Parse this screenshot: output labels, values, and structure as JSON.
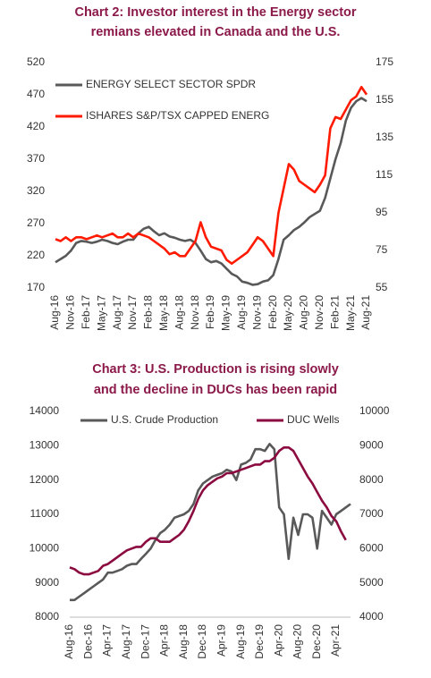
{
  "chart_data": [
    {
      "type": "line",
      "title": [
        "Chart 2: Investor interest in the Energy sector",
        "remians elevated in Canada and the U.S."
      ],
      "categories": [
        "Aug-16",
        null,
        null,
        "Nov-16",
        null,
        null,
        "Feb-17",
        null,
        null,
        "May-17",
        null,
        null,
        "Aug-17",
        null,
        null,
        "Nov-17",
        null,
        null,
        "Feb-18",
        null,
        null,
        "May-18",
        null,
        null,
        "Aug-18",
        null,
        null,
        "Nov-18",
        null,
        null,
        "Feb-19",
        null,
        null,
        "May-19",
        null,
        null,
        "Aug-19",
        null,
        null,
        "Nov-19",
        null,
        null,
        "Feb-20",
        null,
        null,
        "May-20",
        null,
        null,
        "Aug-20",
        null,
        null,
        "Nov-20",
        null,
        null,
        "Feb-21",
        null,
        null,
        "May-21",
        null,
        null,
        "Aug-21"
      ],
      "series": [
        {
          "name": "ENERGY SELECT SECTOR SPDR",
          "color": "#595959",
          "axis": "y",
          "values": [
            210,
            215,
            220,
            228,
            240,
            243,
            242,
            240,
            242,
            245,
            243,
            240,
            238,
            242,
            245,
            245,
            255,
            262,
            265,
            258,
            252,
            255,
            250,
            248,
            245,
            243,
            245,
            240,
            228,
            215,
            210,
            212,
            208,
            200,
            192,
            188,
            180,
            178,
            175,
            176,
            180,
            182,
            190,
            215,
            245,
            252,
            260,
            265,
            272,
            280,
            285,
            290,
            310,
            340,
            370,
            395,
            430,
            450,
            460,
            465,
            460
          ]
        },
        {
          "name": "ISHARES S&P/TSX CAPPED ENERG",
          "color": "#ff1a00",
          "axis": "y2",
          "values": [
            81,
            80,
            82,
            80,
            82,
            82,
            81,
            82,
            83,
            82,
            83,
            84,
            82,
            82,
            84,
            82,
            84,
            83,
            82,
            80,
            78,
            76,
            73,
            74,
            72,
            72,
            76,
            80,
            90,
            82,
            77,
            76,
            75,
            70,
            68,
            70,
            72,
            74,
            78,
            82,
            80,
            76,
            72,
            95,
            108,
            121,
            118,
            112,
            110,
            108,
            106,
            110,
            115,
            140,
            146,
            145,
            150,
            155,
            157,
            162,
            158
          ]
        }
      ],
      "ylim": [
        170,
        520
      ],
      "yticks": [
        170,
        220,
        270,
        320,
        370,
        420,
        470,
        520
      ],
      "y2lim": [
        55,
        175
      ],
      "y2ticks": [
        55,
        75,
        95,
        115,
        135,
        155,
        175
      ]
    },
    {
      "type": "line",
      "title": [
        "Chart 3: U.S. Production is rising slowly",
        "and the decline in DUCs has been rapid"
      ],
      "categories": [
        "Aug-16",
        null,
        null,
        null,
        "Dec-16",
        null,
        null,
        null,
        "Apr-17",
        null,
        null,
        null,
        "Aug-17",
        null,
        null,
        null,
        "Dec-17",
        null,
        null,
        null,
        "Apr-18",
        null,
        null,
        null,
        "Aug-18",
        null,
        null,
        null,
        "Dec-18",
        null,
        null,
        null,
        "Apr-19",
        null,
        null,
        null,
        "Aug-19",
        null,
        null,
        null,
        "Dec-19",
        null,
        null,
        null,
        "Apr-20",
        null,
        null,
        null,
        "Aug-20",
        null,
        null,
        null,
        "Dec-20",
        null,
        null,
        null,
        "Apr-21",
        null,
        null,
        null
      ],
      "series": [
        {
          "name": "U.S. Crude Production",
          "color": "#595959",
          "axis": "y",
          "values": [
            8500,
            8500,
            8600,
            8700,
            8800,
            8900,
            9000,
            9100,
            9300,
            9300,
            9350,
            9400,
            9500,
            9550,
            9550,
            9700,
            9850,
            10000,
            10250,
            10450,
            10550,
            10700,
            10900,
            10950,
            11000,
            11100,
            11300,
            11700,
            11900,
            12000,
            12100,
            12150,
            12200,
            12300,
            12250,
            12000,
            12450,
            12500,
            12600,
            12900,
            12900,
            12850,
            13050,
            12900,
            11200,
            11000,
            9700,
            10900,
            10400,
            11000,
            11000,
            10900,
            10000,
            11100,
            10900,
            10700,
            11000,
            11100,
            11200,
            11300
          ]
        },
        {
          "name": "DUC Wells",
          "color": "#8b0a3f",
          "axis": "y2",
          "values": [
            5450,
            5400,
            5300,
            5250,
            5250,
            5300,
            5350,
            5500,
            5550,
            5650,
            5750,
            5850,
            5950,
            6000,
            6050,
            6050,
            6200,
            6300,
            6300,
            6200,
            6200,
            6200,
            6300,
            6400,
            6550,
            6800,
            7100,
            7450,
            7700,
            7850,
            7950,
            8050,
            8100,
            8200,
            8200,
            8250,
            8300,
            8350,
            8400,
            8450,
            8450,
            8550,
            8550,
            8650,
            8850,
            8950,
            8950,
            8850,
            8600,
            8350,
            8100,
            7900,
            7650,
            7400,
            7200,
            6950,
            6800,
            6500,
            6250,
            null
          ]
        }
      ],
      "ylim": [
        8000,
        14000
      ],
      "yticks": [
        8000,
        9000,
        10000,
        11000,
        12000,
        13000,
        14000
      ],
      "y2lim": [
        4000,
        10000
      ],
      "y2ticks": [
        4000,
        5000,
        6000,
        7000,
        8000,
        9000,
        10000
      ]
    }
  ]
}
